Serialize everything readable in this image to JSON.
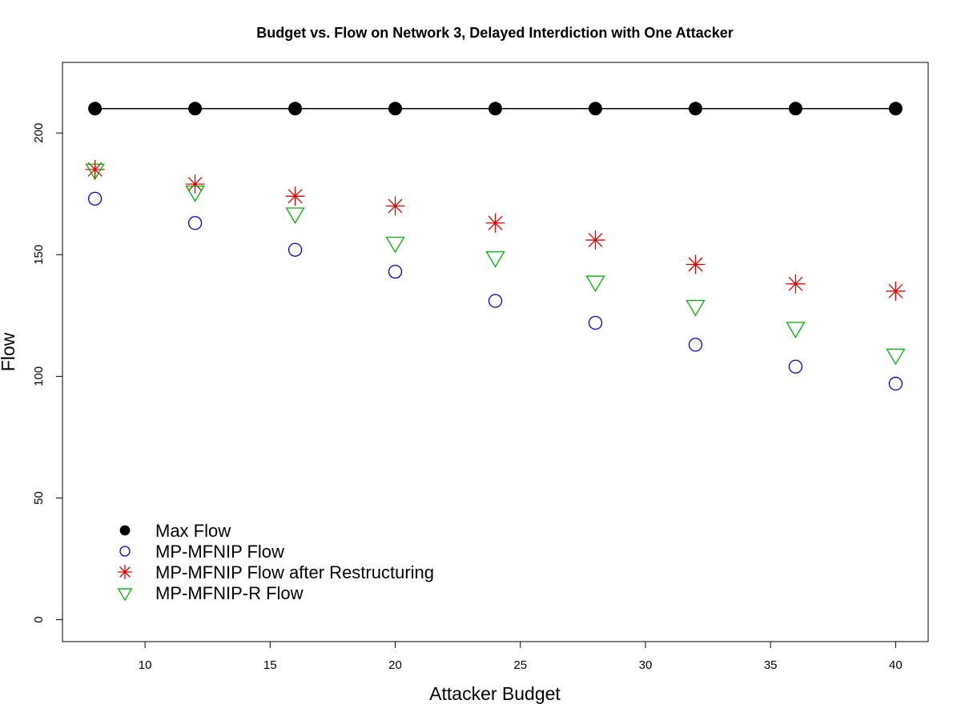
{
  "chart_data": {
    "type": "scatter",
    "title": "Budget vs. Flow on Network 3, Delayed Interdiction with One Attacker",
    "xlabel": "Attacker Budget",
    "ylabel": "Flow",
    "xlim": [
      6.7,
      41.3
    ],
    "ylim": [
      -9,
      229
    ],
    "xticks": [
      10,
      15,
      20,
      25,
      30,
      35,
      40
    ],
    "yticks": [
      0,
      50,
      100,
      150,
      200
    ],
    "x": [
      8,
      12,
      16,
      20,
      24,
      28,
      32,
      36,
      40
    ],
    "legend_position": "bottom-left",
    "series": [
      {
        "name": "Max Flow",
        "marker": "filled-circle",
        "color": "#000000",
        "line": true,
        "values": [
          210,
          210,
          210,
          210,
          210,
          210,
          210,
          210,
          210
        ]
      },
      {
        "name": "MP-MFNIP Flow",
        "marker": "open-circle",
        "color": "#0000cc",
        "line": false,
        "values": [
          173,
          163,
          152,
          143,
          131,
          122,
          113,
          104,
          97
        ]
      },
      {
        "name": "MP-MFNIP Flow after Restructuring",
        "marker": "asterisk",
        "color": "#e00000",
        "line": false,
        "values": [
          185,
          179,
          174,
          170,
          163,
          156,
          146,
          138,
          135
        ]
      },
      {
        "name": "MP-MFNIP-R Flow",
        "marker": "down-triangle",
        "color": "#00b000",
        "line": false,
        "values": [
          185,
          176,
          167,
          155,
          149,
          139,
          129,
          120,
          109
        ]
      }
    ]
  }
}
